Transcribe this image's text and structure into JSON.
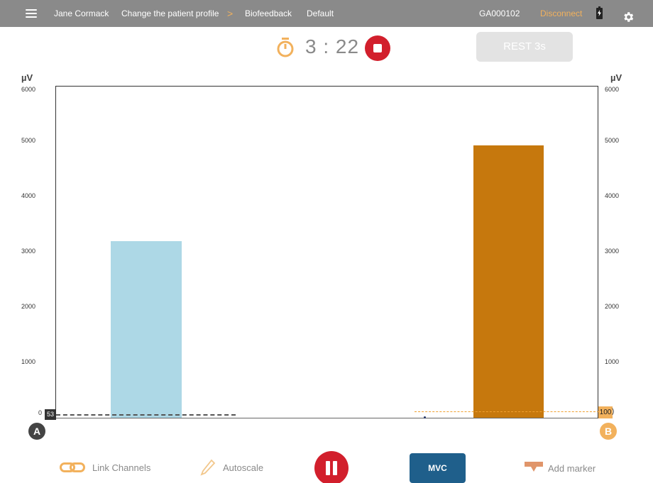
{
  "header": {
    "patient_name": "Jane Cormack",
    "change_profile": "Change the patient profile",
    "chevron": ">",
    "section": "Biofeedback",
    "preset": "Default",
    "device_id": "GA000102",
    "disconnect": "Disconnect"
  },
  "session": {
    "timer": "3 : 22",
    "rest_button": "REST 3s"
  },
  "chart": {
    "unit_left": "µV",
    "unit_right": "µV",
    "ticks_left": [
      "6000",
      "5000",
      "4000",
      "3000",
      "2000",
      "1000",
      "0"
    ],
    "ticks_right": [
      "6000",
      "5000",
      "4000",
      "3000",
      "2000",
      "1000"
    ],
    "channel_a_label": "A",
    "channel_b_label": "B",
    "channel_a_threshold_tag": "53",
    "channel_b_threshold_tag": "100",
    "channel_b_paren": ")"
  },
  "chart_data": {
    "type": "bar",
    "categories": [
      "A",
      "B"
    ],
    "values": [
      3290,
      5030
    ],
    "ylabel": "µV",
    "ylim": [
      0,
      6000
    ],
    "colors": [
      "#add8e6",
      "#c6780d"
    ]
  },
  "toolbar": {
    "link_channels": "Link Channels",
    "autoscale": "Autoscale",
    "mvc": "MVC",
    "add_marker": "Add marker"
  },
  "colors": {
    "topbar": "#8a8a8a",
    "accent_orange": "#f2b15c",
    "stop_red": "#d21f2c",
    "mvc_blue": "#1f5f8b"
  }
}
